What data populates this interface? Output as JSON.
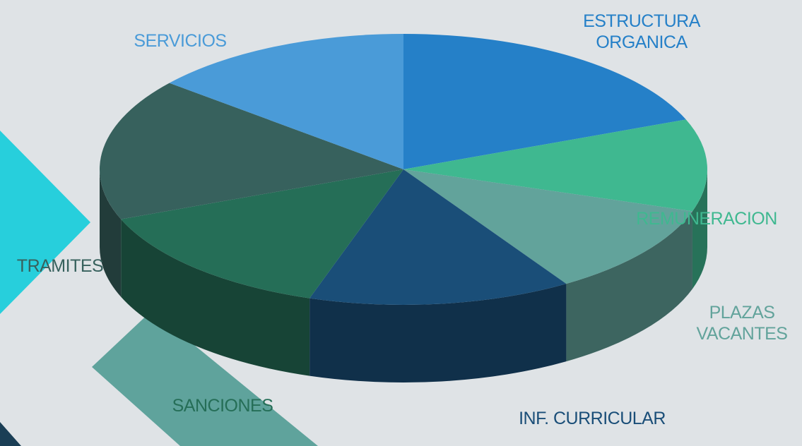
{
  "chart_data": {
    "type": "pie",
    "categories": [
      "ESTRUCTURA ORGANICA",
      "REMUNERACION",
      "PLAZAS VACANTES",
      "INF. CURRICULAR",
      "SANCIONES",
      "TRAMITES",
      "SERVICIOS"
    ],
    "values": [
      19,
      11,
      11,
      14,
      14,
      17,
      14
    ],
    "colors": [
      "#2580c8",
      "#3fb890",
      "#62a39b",
      "#1a4e78",
      "#256e57",
      "#37615d",
      "#4a9bd8"
    ]
  }
}
